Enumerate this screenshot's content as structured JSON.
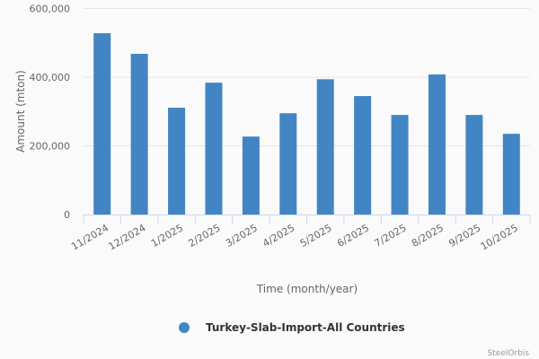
{
  "chart_data": {
    "type": "bar",
    "categories": [
      "11/2024",
      "12/2024",
      "1/2025",
      "2/2025",
      "3/2025",
      "4/2025",
      "5/2025",
      "6/2025",
      "7/2025",
      "8/2025",
      "9/2025",
      "10/2025"
    ],
    "series": [
      {
        "name": "Turkey-Slab-Import-All Countries",
        "values": [
          528000,
          468000,
          311000,
          384000,
          227000,
          295000,
          394000,
          345000,
          290000,
          408000,
          290000,
          235000
        ],
        "color": "#4285c4"
      }
    ],
    "xlabel": "Time (month/year)",
    "ylabel": "Amount (mton)",
    "ylim": [
      0,
      600000
    ],
    "yticks": [
      "0",
      "200,000",
      "400,000",
      "600,000"
    ],
    "grid": true,
    "legend": "bottom-center"
  },
  "credit": "SteelOrbis"
}
